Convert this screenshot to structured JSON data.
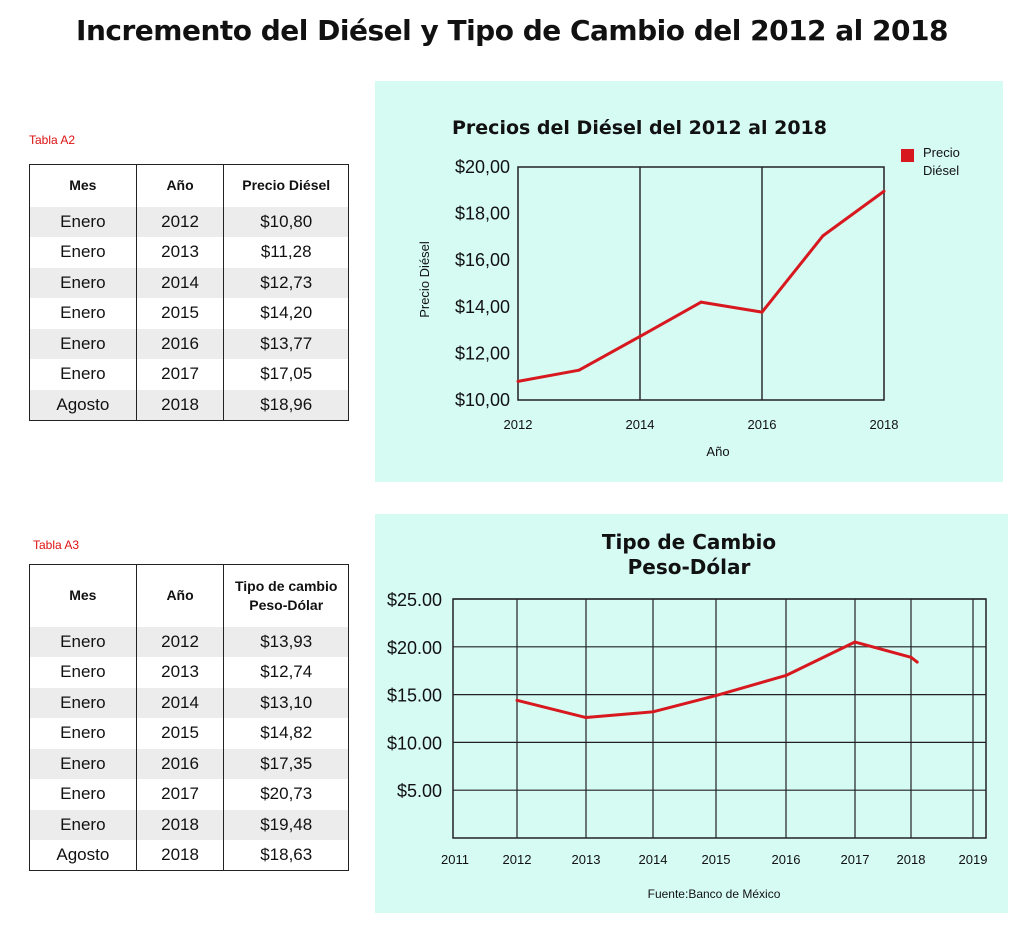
{
  "page": {
    "title": "Incremento del Diésel y Tipo de Cambio del 2012 al 2018"
  },
  "table_a2": {
    "label": "Tabla A2",
    "headers": [
      "Mes",
      "Año",
      "Precio Diésel"
    ],
    "rows": [
      [
        "Enero",
        "2012",
        "$10,80"
      ],
      [
        "Enero",
        "2013",
        "$11,28"
      ],
      [
        "Enero",
        "2014",
        "$12,73"
      ],
      [
        "Enero",
        "2015",
        "$14,20"
      ],
      [
        "Enero",
        "2016",
        "$13,77"
      ],
      [
        "Enero",
        "2017",
        "$17,05"
      ],
      [
        "Agosto",
        "2018",
        "$18,96"
      ]
    ]
  },
  "table_a3": {
    "label": "Tabla A3",
    "headers": [
      "Mes",
      "Año",
      "Tipo de cambio Peso-Dólar"
    ],
    "rows": [
      [
        "Enero",
        "2012",
        "$13,93"
      ],
      [
        "Enero",
        "2013",
        "$12,74"
      ],
      [
        "Enero",
        "2014",
        "$13,10"
      ],
      [
        "Enero",
        "2015",
        "$14,82"
      ],
      [
        "Enero",
        "2016",
        "$17,35"
      ],
      [
        "Enero",
        "2017",
        "$20,73"
      ],
      [
        "Enero",
        "2018",
        "$19,48"
      ],
      [
        "Agosto",
        "2018",
        "$18,63"
      ]
    ]
  },
  "chart_data": [
    {
      "type": "line",
      "title": "Precios del Diésel del 2012 al 2018",
      "xlabel": "Año",
      "ylabel": "Precio Diésel",
      "xlim": [
        2012,
        2018
      ],
      "ylim": [
        10,
        20
      ],
      "x_ticks": [
        2012,
        2014,
        2016,
        2018
      ],
      "x_tick_labels": [
        "2012",
        "2014",
        "2016",
        "2018"
      ],
      "y_ticks": [
        10,
        12,
        14,
        16,
        18,
        20
      ],
      "y_tick_labels": [
        "$10,00",
        "$12,00",
        "$14,00",
        "$16,00",
        "$18,00",
        "$20,00"
      ],
      "grid": "vertical only",
      "legend_placement": "top-right",
      "series": [
        {
          "name": "Precio Diésel",
          "color": "#d7191f",
          "x": [
            2012,
            2013,
            2014,
            2015,
            2016,
            2017,
            2018
          ],
          "y": [
            10.8,
            11.28,
            12.73,
            14.2,
            13.77,
            17.05,
            18.96
          ]
        }
      ]
    },
    {
      "type": "line",
      "title": "Tipo de Cambio Peso-Dólar",
      "title_lines": [
        "Tipo de Cambio",
        "Peso-Dólar"
      ],
      "source_note": "Fuente:Banco de México",
      "ylim": [
        0,
        25
      ],
      "y_ticks": [
        5,
        10,
        15,
        20,
        25
      ],
      "y_tick_labels": [
        "$5.00",
        "$10.00",
        "$15.00",
        "$20.00",
        "$25.00"
      ],
      "x_ticks": [
        2011,
        2012,
        2013,
        2014,
        2015,
        2016,
        2017,
        2018,
        2019
      ],
      "x_tick_labels": [
        "2011",
        "2012",
        "2013",
        "2014",
        "2015",
        "2016",
        "2017",
        "2018",
        "2019"
      ],
      "grid": "both",
      "series": [
        {
          "color": "#d7191f",
          "x": [
            2012,
            2013,
            2014,
            2015,
            2016,
            2017,
            2018,
            2018.1
          ],
          "y": [
            14.4,
            12.6,
            13.2,
            14.9,
            17.0,
            20.5,
            18.9,
            18.4
          ]
        }
      ]
    }
  ]
}
